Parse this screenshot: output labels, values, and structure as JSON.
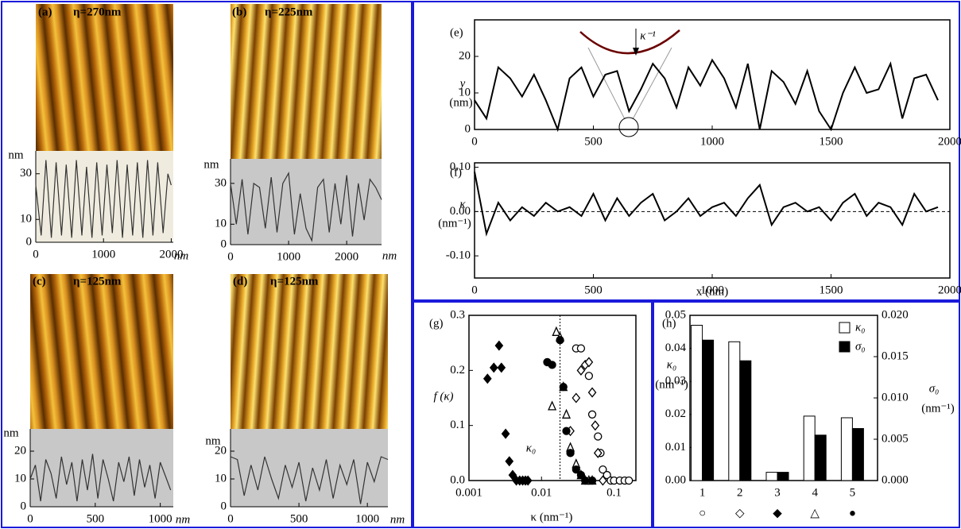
{
  "chart_data": [
    {
      "type": "line",
      "label": "(a)",
      "image_title": "η=270nm",
      "y_unit": "nm",
      "x_unit": "nm",
      "color": "#333333",
      "background": "#efecdf",
      "x": [
        0,
        80,
        150,
        230,
        300,
        380,
        450,
        530,
        600,
        680,
        750,
        830,
        900,
        980,
        1050,
        1130,
        1200,
        1280,
        1350,
        1430,
        1500,
        1580,
        1650,
        1730,
        1800,
        1880,
        1950,
        2000
      ],
      "values": [
        25,
        3,
        36,
        2,
        35,
        3,
        34,
        2,
        36,
        3,
        33,
        2,
        35,
        3,
        34,
        4,
        36,
        2,
        34,
        3,
        35,
        2,
        36,
        3,
        35,
        4,
        30,
        25
      ],
      "xlim": [
        0,
        2030
      ],
      "xticks": [
        0,
        1000,
        2000
      ],
      "ylim": [
        0,
        40
      ],
      "yticks": [
        0,
        10,
        30
      ]
    },
    {
      "type": "line",
      "label": "(b)",
      "image_title": "η=225nm",
      "y_unit": "nm",
      "x_unit": "nm",
      "color": "#333333",
      "background": "#c8c8c8",
      "x": [
        0,
        100,
        200,
        300,
        400,
        500,
        600,
        700,
        800,
        900,
        1000,
        1100,
        1200,
        1300,
        1400,
        1500,
        1600,
        1700,
        1800,
        1900,
        2000,
        2100,
        2200,
        2300,
        2400,
        2500,
        2600
      ],
      "values": [
        30,
        10,
        32,
        5,
        30,
        28,
        8,
        33,
        6,
        30,
        35,
        5,
        25,
        8,
        2,
        28,
        32,
        6,
        30,
        10,
        34,
        4,
        30,
        12,
        32,
        28,
        22
      ],
      "xlim": [
        0,
        2600
      ],
      "xticks": [
        0,
        1000,
        2000
      ],
      "ylim": [
        0,
        42
      ],
      "yticks": [
        0,
        10,
        30
      ]
    },
    {
      "type": "line",
      "label": "(c)",
      "image_title": "η=125nm",
      "y_unit": "nm",
      "x_unit": "nm",
      "color": "#333333",
      "background": "#c8c8c8",
      "x": [
        0,
        40,
        80,
        120,
        160,
        200,
        240,
        280,
        320,
        360,
        400,
        440,
        480,
        520,
        560,
        600,
        640,
        680,
        720,
        760,
        800,
        840,
        880,
        920,
        960,
        1000,
        1040,
        1080
      ],
      "values": [
        10,
        15,
        2,
        17,
        12,
        3,
        18,
        8,
        16,
        2,
        17,
        6,
        19,
        3,
        17,
        10,
        2,
        16,
        9,
        18,
        4,
        17,
        7,
        15,
        3,
        16,
        11,
        6
      ],
      "xlim": [
        0,
        1100
      ],
      "xticks": [
        0,
        500,
        1000
      ],
      "ylim": [
        0,
        28
      ],
      "yticks": [
        0,
        10,
        20
      ]
    },
    {
      "type": "line",
      "label": "(d)",
      "image_title": "η=125nm",
      "y_unit": "nm",
      "x_unit": "nm",
      "color": "#333333",
      "background": "#c8c8c8",
      "x": [
        0,
        50,
        100,
        150,
        200,
        250,
        300,
        350,
        400,
        450,
        500,
        550,
        600,
        650,
        700,
        750,
        800,
        850,
        900,
        950,
        1000,
        1050,
        1100,
        1150
      ],
      "values": [
        18,
        17,
        4,
        15,
        6,
        18,
        10,
        3,
        15,
        7,
        16,
        2,
        14,
        6,
        17,
        3,
        15,
        8,
        17,
        1,
        16,
        9,
        18,
        17
      ],
      "xlim": [
        0,
        1150
      ],
      "xticks": [
        0,
        500,
        1000
      ],
      "ylim": [
        0,
        28
      ],
      "yticks": [
        0,
        10,
        20
      ]
    },
    {
      "type": "line",
      "label": "(e)",
      "y_label": "y",
      "y_unit": "(nm)",
      "annotation": "κ⁻¹",
      "color": "#000000",
      "x": [
        0,
        50,
        100,
        150,
        200,
        250,
        300,
        350,
        400,
        450,
        500,
        550,
        600,
        650,
        700,
        750,
        800,
        850,
        900,
        950,
        1000,
        1050,
        1100,
        1150,
        1200,
        1250,
        1300,
        1350,
        1400,
        1450,
        1500,
        1550,
        1600,
        1650,
        1700,
        1750,
        1800,
        1850,
        1900,
        1950
      ],
      "values": [
        8,
        3,
        17,
        14,
        9,
        15,
        8,
        0,
        14,
        17,
        9,
        15,
        16,
        5,
        11,
        18,
        14,
        6,
        17,
        12,
        19,
        14,
        6,
        18,
        0,
        16,
        13,
        7,
        16,
        5,
        0,
        10,
        17,
        10,
        11,
        18,
        3,
        14,
        15,
        8
      ],
      "xlim": [
        0,
        2000
      ],
      "xticks": [
        0,
        500,
        1000,
        1500,
        2000
      ],
      "ylim": [
        0,
        30
      ],
      "yticks": [
        0,
        10,
        20
      ]
    },
    {
      "type": "line",
      "label": "(f)",
      "y_label": "κ",
      "y_unit": "(nm⁻¹)",
      "x_label": "x (nm)",
      "color": "#000000",
      "reference_y": 0,
      "x": [
        0,
        50,
        100,
        150,
        200,
        250,
        300,
        350,
        400,
        450,
        500,
        550,
        600,
        650,
        700,
        750,
        800,
        850,
        900,
        950,
        1000,
        1050,
        1100,
        1150,
        1200,
        1250,
        1300,
        1350,
        1400,
        1450,
        1500,
        1550,
        1600,
        1650,
        1700,
        1750,
        1800,
        1850,
        1900,
        1950
      ],
      "values": [
        0.09,
        -0.05,
        0.02,
        -0.02,
        0.01,
        -0.01,
        0.02,
        0.0,
        0.01,
        -0.01,
        0.04,
        -0.02,
        0.03,
        -0.01,
        0.02,
        0.04,
        -0.02,
        0.0,
        0.03,
        -0.01,
        0.01,
        0.02,
        -0.01,
        0.03,
        0.06,
        -0.03,
        0.01,
        0.02,
        0.0,
        0.01,
        -0.02,
        0.02,
        0.04,
        -0.01,
        0.02,
        0.01,
        -0.03,
        0.04,
        0.0,
        0.01
      ],
      "xlim": [
        0,
        2000
      ],
      "xticks": [
        0,
        500,
        1000,
        1500,
        2000
      ],
      "ylim": [
        -0.15,
        0.11
      ],
      "yticks": [
        {
          "value": -0.1,
          "label": "-0.10"
        },
        {
          "value": 0,
          "label": "0.00"
        },
        {
          "value": 0.1,
          "label": "0.10"
        }
      ]
    },
    {
      "type": "scatter",
      "label": "(g)",
      "y_label": "f (κ)",
      "x_label": "κ (nm⁻¹)",
      "xscale": "log",
      "reference_x": 0.018,
      "annotation": "κ₀",
      "xlim": [
        0.001,
        0.2
      ],
      "xticks": [
        0.001,
        0.01,
        0.1
      ],
      "ylim": [
        0,
        0.3
      ],
      "yticks": [
        {
          "value": 0,
          "label": "0.0"
        },
        0.1,
        0.2,
        0.3
      ],
      "series": [
        {
          "marker": "circle-open",
          "x": [
            0.03,
            0.035,
            0.045,
            0.05,
            0.06,
            0.065,
            0.07,
            0.08,
            0.09,
            0.1,
            0.12,
            0.14,
            0.16
          ],
          "values": [
            0.24,
            0.24,
            0.19,
            0.12,
            0.08,
            0.05,
            0.02,
            0.01,
            0,
            0,
            0,
            0,
            0
          ]
        },
        {
          "marker": "diamond-open",
          "x": [
            0.025,
            0.03,
            0.035,
            0.04,
            0.045,
            0.05,
            0.055,
            0.06,
            0.07
          ],
          "values": [
            0.09,
            0.15,
            0.2,
            0.21,
            0.215,
            0.16,
            0.1,
            0.05,
            0
          ]
        },
        {
          "marker": "diamond-filled",
          "x": [
            0.0018,
            0.0022,
            0.0026,
            0.0028,
            0.0032,
            0.0036,
            0.004,
            0.0045,
            0.005,
            0.0055,
            0.006,
            0.0065
          ],
          "values": [
            0.185,
            0.205,
            0.245,
            0.205,
            0.085,
            0.035,
            0.01,
            0,
            0,
            0,
            0,
            0
          ]
        },
        {
          "marker": "triangle-open",
          "x": [
            0.014,
            0.016,
            0.018,
            0.02,
            0.022,
            0.025,
            0.03,
            0.035,
            0.04,
            0.045,
            0.05
          ],
          "values": [
            0.135,
            0.27,
            0.26,
            0.17,
            0.12,
            0.06,
            0.03,
            0.01,
            0,
            0,
            0
          ]
        },
        {
          "marker": "circle-filled",
          "x": [
            0.012,
            0.014,
            0.018,
            0.02,
            0.022,
            0.025,
            0.03,
            0.035,
            0.04,
            0.05
          ],
          "values": [
            0.215,
            0.21,
            0.255,
            0.17,
            0.09,
            0.05,
            0.02,
            0.01,
            0,
            0
          ]
        }
      ]
    },
    {
      "type": "bar",
      "label": "(h)",
      "y_label": "κ₀",
      "y_unit": "(nm⁻¹)",
      "y2_label": "σ₀",
      "y2_unit": "(nm⁻¹)",
      "legend": "upper right",
      "categories": [
        "1",
        "2",
        "3",
        "4",
        "5"
      ],
      "category_symbols": [
        "○",
        "◇",
        "◆",
        "△",
        "●"
      ],
      "ylim": [
        0,
        0.05
      ],
      "yticks": [
        {
          "value": 0,
          "label": "0.00"
        },
        0.01,
        0.02,
        0.03,
        0.04,
        0.05
      ],
      "y2lim": [
        0,
        0.02
      ],
      "y2ticks": [
        {
          "value": 0,
          "label": "0.000"
        },
        0.005,
        {
          "value": 0.01,
          "label": "0.010"
        },
        0.015,
        {
          "value": 0.02,
          "label": "0.020"
        }
      ],
      "series": [
        {
          "name": "κ₀",
          "color": "#ffffff",
          "values": [
            0.047,
            0.042,
            0.0025,
            0.0195,
            0.019
          ]
        },
        {
          "name": "σ₀",
          "color": "#000000",
          "axis": "y2",
          "values": [
            0.017,
            0.0145,
            0.001,
            0.0055,
            0.0063
          ]
        }
      ]
    }
  ]
}
